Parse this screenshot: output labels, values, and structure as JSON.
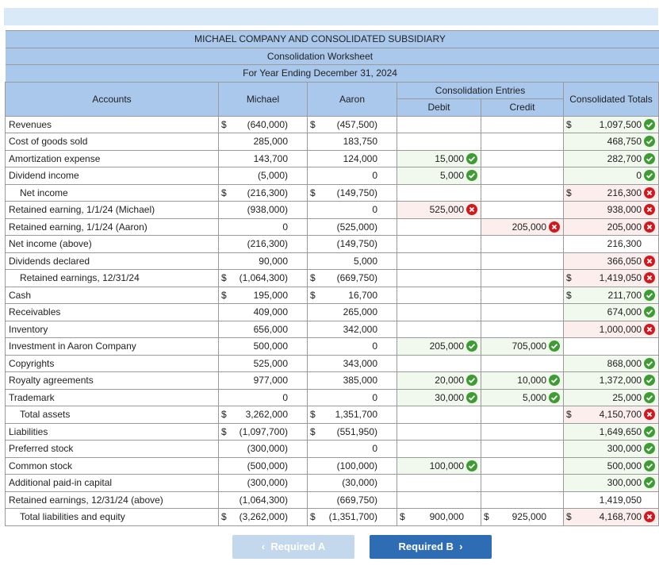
{
  "header": {
    "company": "MICHAEL COMPANY AND CONSOLIDATED SUBSIDIARY",
    "title": "Consolidation Worksheet",
    "period": "For Year Ending December 31, 2024"
  },
  "columns": {
    "accounts": "Accounts",
    "michael": "Michael",
    "aaron": "Aaron",
    "entries": "Consolidation Entries",
    "debit": "Debit",
    "credit": "Credit",
    "totals": "Consolidated Totals"
  },
  "rows": [
    {
      "account": "Revenues",
      "indent": false,
      "michael": {
        "dollar": "$",
        "text": "(640,000)"
      },
      "aaron": {
        "dollar": "$",
        "text": "(457,500)"
      },
      "debit": null,
      "credit": null,
      "total": {
        "dollar": "$",
        "text": "1,097,500",
        "status": "correct"
      }
    },
    {
      "account": "Cost of goods sold",
      "indent": false,
      "michael": {
        "text": "285,000"
      },
      "aaron": {
        "text": "183,750"
      },
      "debit": null,
      "credit": null,
      "total": {
        "text": "468,750",
        "status": "correct"
      }
    },
    {
      "account": "Amortization expense",
      "indent": false,
      "michael": {
        "text": "143,700"
      },
      "aaron": {
        "text": "124,000"
      },
      "debit": {
        "text": "15,000",
        "status": "correct"
      },
      "credit": null,
      "total": {
        "text": "282,700",
        "status": "correct"
      }
    },
    {
      "account": "Dividend income",
      "indent": false,
      "michael": {
        "text": "(5,000)"
      },
      "aaron": {
        "text": "0"
      },
      "debit": {
        "text": "5,000",
        "status": "correct"
      },
      "credit": null,
      "total": {
        "text": "0",
        "status": "correct"
      }
    },
    {
      "account": "Net income",
      "indent": true,
      "michael": {
        "dollar": "$",
        "text": "(216,300)"
      },
      "aaron": {
        "dollar": "$",
        "text": "(149,750)"
      },
      "debit": null,
      "credit": null,
      "total": {
        "dollar": "$",
        "text": "216,300",
        "status": "incorrect"
      }
    },
    {
      "account": "Retained earning, 1/1/24 (Michael)",
      "indent": false,
      "michael": {
        "text": "(938,000)"
      },
      "aaron": {
        "text": "0"
      },
      "debit": {
        "text": "525,000",
        "status": "incorrect"
      },
      "credit": null,
      "total": {
        "text": "938,000",
        "status": "incorrect"
      }
    },
    {
      "account": "Retained earning, 1/1/24 (Aaron)",
      "indent": false,
      "michael": {
        "text": "0"
      },
      "aaron": {
        "text": "(525,000)"
      },
      "debit": null,
      "credit": {
        "text": "205,000",
        "status": "incorrect"
      },
      "total": {
        "text": "205,000",
        "status": "incorrect"
      }
    },
    {
      "account": "Net income (above)",
      "indent": false,
      "michael": {
        "text": "(216,300)"
      },
      "aaron": {
        "text": "(149,750)"
      },
      "debit": null,
      "credit": null,
      "total": {
        "text": "216,300"
      }
    },
    {
      "account": "Dividends declared",
      "indent": false,
      "michael": {
        "text": "90,000"
      },
      "aaron": {
        "text": "5,000"
      },
      "debit": null,
      "credit": null,
      "total": {
        "text": "366,050",
        "status": "incorrect"
      }
    },
    {
      "account": "Retained earnings, 12/31/24",
      "indent": true,
      "michael": {
        "dollar": "$",
        "text": "(1,064,300)"
      },
      "aaron": {
        "dollar": "$",
        "text": "(669,750)"
      },
      "debit": null,
      "credit": null,
      "total": {
        "dollar": "$",
        "text": "1,419,050",
        "status": "incorrect"
      }
    },
    {
      "account": "Cash",
      "indent": false,
      "michael": {
        "dollar": "$",
        "text": "195,000"
      },
      "aaron": {
        "dollar": "$",
        "text": "16,700"
      },
      "debit": null,
      "credit": null,
      "total": {
        "dollar": "$",
        "text": "211,700",
        "status": "correct"
      }
    },
    {
      "account": "Receivables",
      "indent": false,
      "michael": {
        "text": "409,000"
      },
      "aaron": {
        "text": "265,000"
      },
      "debit": null,
      "credit": null,
      "total": {
        "text": "674,000",
        "status": "correct"
      }
    },
    {
      "account": "Inventory",
      "indent": false,
      "michael": {
        "text": "656,000"
      },
      "aaron": {
        "text": "342,000"
      },
      "debit": null,
      "credit": null,
      "total": {
        "text": "1,000,000",
        "status": "incorrect"
      }
    },
    {
      "account": "Investment in Aaron Company",
      "indent": false,
      "michael": {
        "text": "500,000"
      },
      "aaron": {
        "text": "0"
      },
      "debit": {
        "text": "205,000",
        "status": "correct"
      },
      "credit": {
        "text": "705,000",
        "status": "correct"
      },
      "total": null
    },
    {
      "account": "Copyrights",
      "indent": false,
      "michael": {
        "text": "525,000"
      },
      "aaron": {
        "text": "343,000"
      },
      "debit": null,
      "credit": null,
      "total": {
        "text": "868,000",
        "status": "correct"
      }
    },
    {
      "account": "Royalty agreements",
      "indent": false,
      "michael": {
        "text": "977,000"
      },
      "aaron": {
        "text": "385,000"
      },
      "debit": {
        "text": "20,000",
        "status": "correct"
      },
      "credit": {
        "text": "10,000",
        "status": "correct"
      },
      "total": {
        "text": "1,372,000",
        "status": "correct"
      }
    },
    {
      "account": "Trademark",
      "indent": false,
      "michael": {
        "text": "0"
      },
      "aaron": {
        "text": "0"
      },
      "debit": {
        "text": "30,000",
        "status": "correct"
      },
      "credit": {
        "text": "5,000",
        "status": "correct"
      },
      "total": {
        "text": "25,000",
        "status": "correct"
      }
    },
    {
      "account": "Total assets",
      "indent": true,
      "michael": {
        "dollar": "$",
        "text": "3,262,000"
      },
      "aaron": {
        "dollar": "$",
        "text": "1,351,700"
      },
      "debit": null,
      "credit": null,
      "total": {
        "dollar": "$",
        "text": "4,150,700",
        "status": "incorrect"
      }
    },
    {
      "account": "Liabilities",
      "indent": false,
      "michael": {
        "dollar": "$",
        "text": "(1,097,700)"
      },
      "aaron": {
        "dollar": "$",
        "text": "(551,950)"
      },
      "debit": null,
      "credit": null,
      "total": {
        "text": "1,649,650",
        "status": "correct"
      }
    },
    {
      "account": "Preferred stock",
      "indent": false,
      "michael": {
        "text": "(300,000)"
      },
      "aaron": {
        "text": "0"
      },
      "debit": null,
      "credit": null,
      "total": {
        "text": "300,000",
        "status": "correct"
      }
    },
    {
      "account": "Common stock",
      "indent": false,
      "michael": {
        "text": "(500,000)"
      },
      "aaron": {
        "text": "(100,000)"
      },
      "debit": {
        "text": "100,000",
        "status": "correct"
      },
      "credit": null,
      "total": {
        "text": "500,000",
        "status": "correct"
      }
    },
    {
      "account": "Additional paid-in capital",
      "indent": false,
      "michael": {
        "text": "(300,000)"
      },
      "aaron": {
        "text": "(30,000)"
      },
      "debit": null,
      "credit": null,
      "total": {
        "text": "300,000",
        "status": "correct"
      }
    },
    {
      "account": "Retained earnings, 12/31/24 (above)",
      "indent": false,
      "michael": {
        "text": "(1,064,300)"
      },
      "aaron": {
        "text": "(669,750)"
      },
      "debit": null,
      "credit": null,
      "total": {
        "text": "1,419,050"
      }
    },
    {
      "account": "Total liabilities and equity",
      "indent": true,
      "michael": {
        "dollar": "$",
        "text": "(3,262,000)"
      },
      "aaron": {
        "dollar": "$",
        "text": "(1,351,700)"
      },
      "debit": {
        "dollar": "$",
        "text": "900,000"
      },
      "credit": {
        "dollar": "$",
        "text": "925,000"
      },
      "total": {
        "dollar": "$",
        "text": "4,168,700",
        "status": "incorrect"
      }
    }
  ],
  "nav": {
    "prev": "Required A",
    "next": "Required B"
  }
}
